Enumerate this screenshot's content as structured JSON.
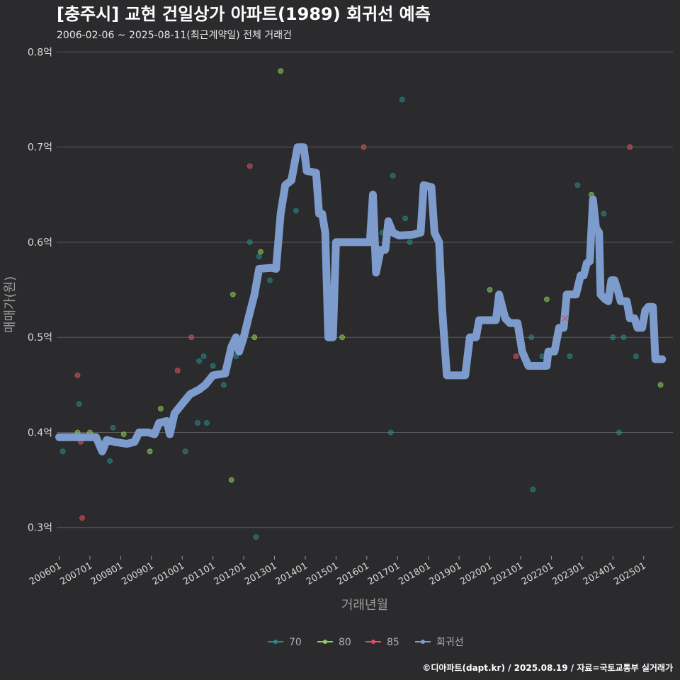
{
  "header": {
    "title": "[충주시] 교현 건일상가 아파트(1989) 회귀선 예측",
    "subtitle": "2006-02-06 ~ 2025-08-11(최근계약일) 전체 거래건"
  },
  "caption": "©디아파트(dapt.kr) / 2025.08.19 / 자료=국토교통부 실거래가",
  "colors": {
    "background": "#2b2b2d",
    "grid": "#5a5a5a",
    "s70": "#2a8a8a",
    "s80": "#8ccf5a",
    "s85": "#d9535f",
    "regression": "#7d9ccd"
  },
  "chart_data": {
    "type": "scatter",
    "title": "[충주시] 교현 건일상가 아파트(1989) 회귀선 예측",
    "xlabel": "거래년월",
    "ylabel": "매매가(원)",
    "ylim": [
      0.27,
      0.81
    ],
    "xlim": [
      2005.92,
      2025.95
    ],
    "yticks": [
      {
        "value": 0.3,
        "label": "0.3억"
      },
      {
        "value": 0.4,
        "label": "0.4억"
      },
      {
        "value": 0.5,
        "label": "0.5억"
      },
      {
        "value": 0.6,
        "label": "0.6억"
      },
      {
        "value": 0.7,
        "label": "0.7억"
      },
      {
        "value": 0.8,
        "label": "0.8억"
      }
    ],
    "xticks": [
      {
        "value": 2006,
        "label": "200601"
      },
      {
        "value": 2007,
        "label": "200701"
      },
      {
        "value": 2008,
        "label": "200801"
      },
      {
        "value": 2009,
        "label": "200901"
      },
      {
        "value": 2010,
        "label": "201001"
      },
      {
        "value": 2011,
        "label": "201101"
      },
      {
        "value": 2012,
        "label": "201201"
      },
      {
        "value": 2013,
        "label": "201301"
      },
      {
        "value": 2014,
        "label": "201401"
      },
      {
        "value": 2015,
        "label": "201501"
      },
      {
        "value": 2016,
        "label": "201601"
      },
      {
        "value": 2017,
        "label": "201701"
      },
      {
        "value": 2018,
        "label": "201801"
      },
      {
        "value": 2019,
        "label": "201901"
      },
      {
        "value": 2020,
        "label": "202001"
      },
      {
        "value": 2021,
        "label": "202101"
      },
      {
        "value": 2022,
        "label": "202201"
      },
      {
        "value": 2023,
        "label": "202301"
      },
      {
        "value": 2024,
        "label": "202401"
      },
      {
        "value": 2025,
        "label": "202501"
      }
    ],
    "legend": {
      "position": "bottom",
      "items": [
        {
          "key": "70",
          "label": "70"
        },
        {
          "key": "80",
          "label": "80"
        },
        {
          "key": "85",
          "label": "85"
        },
        {
          "key": "reg",
          "label": "회귀선"
        }
      ]
    },
    "series": [
      {
        "name": "70",
        "points": [
          {
            "x": 2006.12,
            "y": 0.38
          },
          {
            "x": 2006.65,
            "y": 0.43
          },
          {
            "x": 2007.65,
            "y": 0.37
          },
          {
            "x": 2007.75,
            "y": 0.405
          },
          {
            "x": 2010.1,
            "y": 0.38
          },
          {
            "x": 2010.5,
            "y": 0.41
          },
          {
            "x": 2010.55,
            "y": 0.475
          },
          {
            "x": 2010.7,
            "y": 0.48
          },
          {
            "x": 2010.8,
            "y": 0.41
          },
          {
            "x": 2011.0,
            "y": 0.47
          },
          {
            "x": 2011.35,
            "y": 0.45
          },
          {
            "x": 2011.75,
            "y": 0.48
          },
          {
            "x": 2012.5,
            "y": 0.585
          },
          {
            "x": 2012.85,
            "y": 0.56
          },
          {
            "x": 2013.7,
            "y": 0.633
          },
          {
            "x": 2016.5,
            "y": 0.61
          },
          {
            "x": 2016.78,
            "y": 0.4
          },
          {
            "x": 2016.85,
            "y": 0.67
          },
          {
            "x": 2017.15,
            "y": 0.75
          },
          {
            "x": 2017.25,
            "y": 0.625
          },
          {
            "x": 2017.4,
            "y": 0.6
          },
          {
            "x": 2021.35,
            "y": 0.5
          },
          {
            "x": 2021.4,
            "y": 0.34
          },
          {
            "x": 2021.7,
            "y": 0.48
          },
          {
            "x": 2022.6,
            "y": 0.48
          },
          {
            "x": 2022.85,
            "y": 0.66
          },
          {
            "x": 2023.7,
            "y": 0.63
          },
          {
            "x": 2024.0,
            "y": 0.5
          },
          {
            "x": 2024.2,
            "y": 0.4
          },
          {
            "x": 2024.35,
            "y": 0.5
          },
          {
            "x": 2024.75,
            "y": 0.48
          },
          {
            "x": 2012.4,
            "y": 0.29
          },
          {
            "x": 2012.2,
            "y": 0.6
          },
          {
            "x": 2021.0,
            "y": 0.49
          }
        ]
      },
      {
        "name": "80",
        "points": [
          {
            "x": 2006.6,
            "y": 0.4
          },
          {
            "x": 2007.0,
            "y": 0.4
          },
          {
            "x": 2008.1,
            "y": 0.398
          },
          {
            "x": 2008.95,
            "y": 0.38
          },
          {
            "x": 2009.3,
            "y": 0.425
          },
          {
            "x": 2011.6,
            "y": 0.35
          },
          {
            "x": 2011.65,
            "y": 0.545
          },
          {
            "x": 2012.55,
            "y": 0.59
          },
          {
            "x": 2013.2,
            "y": 0.78
          },
          {
            "x": 2015.2,
            "y": 0.5
          },
          {
            "x": 2015.6,
            "y": 0.6
          },
          {
            "x": 2020.0,
            "y": 0.55
          },
          {
            "x": 2021.85,
            "y": 0.54
          },
          {
            "x": 2023.3,
            "y": 0.65
          },
          {
            "x": 2025.55,
            "y": 0.45
          },
          {
            "x": 2012.35,
            "y": 0.5
          }
        ]
      },
      {
        "name": "85",
        "points": [
          {
            "x": 2006.6,
            "y": 0.46
          },
          {
            "x": 2006.7,
            "y": 0.39
          },
          {
            "x": 2006.75,
            "y": 0.31
          },
          {
            "x": 2009.85,
            "y": 0.465
          },
          {
            "x": 2010.3,
            "y": 0.5
          },
          {
            "x": 2012.2,
            "y": 0.68
          },
          {
            "x": 2015.9,
            "y": 0.7
          },
          {
            "x": 2020.85,
            "y": 0.48
          },
          {
            "x": 2022.4,
            "y": 0.52
          },
          {
            "x": 2024.55,
            "y": 0.7
          }
        ]
      }
    ],
    "regression": [
      [
        2006.0,
        0.395
      ],
      [
        2006.5,
        0.395
      ],
      [
        2007.2,
        0.395
      ],
      [
        2007.4,
        0.38
      ],
      [
        2007.55,
        0.392
      ],
      [
        2007.8,
        0.39
      ],
      [
        2008.2,
        0.388
      ],
      [
        2008.45,
        0.39
      ],
      [
        2008.6,
        0.4
      ],
      [
        2008.9,
        0.4
      ],
      [
        2009.1,
        0.398
      ],
      [
        2009.25,
        0.41
      ],
      [
        2009.5,
        0.412
      ],
      [
        2009.6,
        0.398
      ],
      [
        2009.75,
        0.42
      ],
      [
        2010.0,
        0.43
      ],
      [
        2010.25,
        0.44
      ],
      [
        2010.55,
        0.445
      ],
      [
        2010.75,
        0.45
      ],
      [
        2011.0,
        0.46
      ],
      [
        2011.4,
        0.462
      ],
      [
        2011.6,
        0.49
      ],
      [
        2011.75,
        0.5
      ],
      [
        2011.85,
        0.485
      ],
      [
        2012.0,
        0.5
      ],
      [
        2012.15,
        0.52
      ],
      [
        2012.35,
        0.545
      ],
      [
        2012.5,
        0.572
      ],
      [
        2012.9,
        0.573
      ],
      [
        2013.05,
        0.572
      ],
      [
        2013.2,
        0.63
      ],
      [
        2013.35,
        0.66
      ],
      [
        2013.55,
        0.665
      ],
      [
        2013.75,
        0.7
      ],
      [
        2013.95,
        0.7
      ],
      [
        2014.05,
        0.675
      ],
      [
        2014.35,
        0.673
      ],
      [
        2014.45,
        0.63
      ],
      [
        2014.55,
        0.63
      ],
      [
        2014.65,
        0.61
      ],
      [
        2014.75,
        0.5
      ],
      [
        2014.9,
        0.5
      ],
      [
        2015.0,
        0.6
      ],
      [
        2015.35,
        0.6
      ],
      [
        2015.8,
        0.6
      ],
      [
        2016.1,
        0.6
      ],
      [
        2016.2,
        0.65
      ],
      [
        2016.3,
        0.568
      ],
      [
        2016.45,
        0.592
      ],
      [
        2016.6,
        0.592
      ],
      [
        2016.7,
        0.622
      ],
      [
        2016.85,
        0.61
      ],
      [
        2017.05,
        0.607
      ],
      [
        2017.5,
        0.608
      ],
      [
        2017.75,
        0.61
      ],
      [
        2017.85,
        0.66
      ],
      [
        2018.1,
        0.658
      ],
      [
        2018.2,
        0.61
      ],
      [
        2018.35,
        0.6
      ],
      [
        2018.45,
        0.53
      ],
      [
        2018.6,
        0.46
      ],
      [
        2018.95,
        0.46
      ],
      [
        2019.2,
        0.46
      ],
      [
        2019.35,
        0.5
      ],
      [
        2019.55,
        0.5
      ],
      [
        2019.65,
        0.518
      ],
      [
        2019.95,
        0.518
      ],
      [
        2020.2,
        0.518
      ],
      [
        2020.3,
        0.545
      ],
      [
        2020.5,
        0.52
      ],
      [
        2020.65,
        0.515
      ],
      [
        2020.9,
        0.515
      ],
      [
        2021.05,
        0.485
      ],
      [
        2021.25,
        0.47
      ],
      [
        2021.7,
        0.47
      ],
      [
        2021.85,
        0.47
      ],
      [
        2021.9,
        0.485
      ],
      [
        2022.1,
        0.485
      ],
      [
        2022.25,
        0.51
      ],
      [
        2022.4,
        0.51
      ],
      [
        2022.5,
        0.545
      ],
      [
        2022.8,
        0.545
      ],
      [
        2022.95,
        0.565
      ],
      [
        2023.05,
        0.565
      ],
      [
        2023.15,
        0.578
      ],
      [
        2023.25,
        0.58
      ],
      [
        2023.35,
        0.645
      ],
      [
        2023.45,
        0.615
      ],
      [
        2023.55,
        0.61
      ],
      [
        2023.6,
        0.545
      ],
      [
        2023.75,
        0.54
      ],
      [
        2023.85,
        0.538
      ],
      [
        2023.95,
        0.56
      ],
      [
        2024.05,
        0.56
      ],
      [
        2024.15,
        0.55
      ],
      [
        2024.25,
        0.538
      ],
      [
        2024.45,
        0.538
      ],
      [
        2024.55,
        0.52
      ],
      [
        2024.7,
        0.52
      ],
      [
        2024.8,
        0.51
      ],
      [
        2024.95,
        0.51
      ],
      [
        2025.05,
        0.528
      ],
      [
        2025.15,
        0.532
      ],
      [
        2025.3,
        0.532
      ],
      [
        2025.38,
        0.477
      ],
      [
        2025.6,
        0.477
      ]
    ]
  },
  "markers": [
    {
      "x": 2022.45,
      "y": 0.52,
      "type": "cross"
    }
  ]
}
